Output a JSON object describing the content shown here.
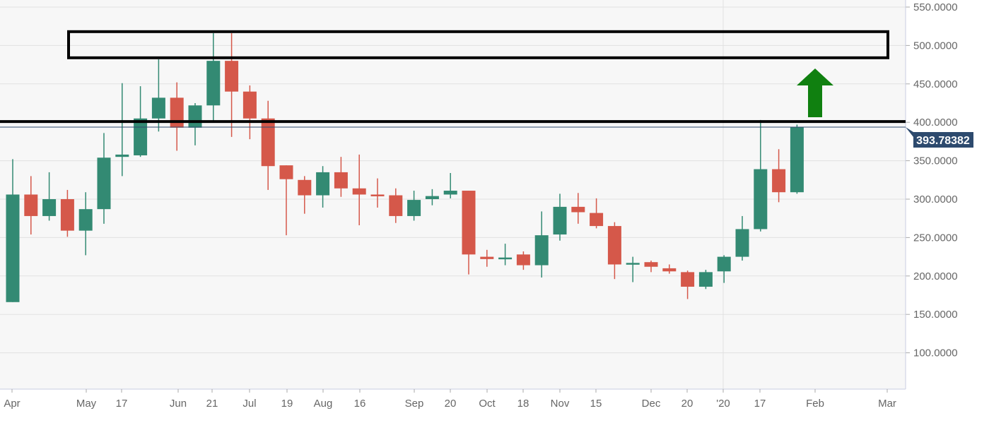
{
  "chart_data": {
    "type": "candlestick",
    "ylim": [
      50,
      555
    ],
    "y_ticks": [
      "550.0000",
      "500.0000",
      "450.0000",
      "400.0000",
      "350.0000",
      "300.0000",
      "250.0000",
      "200.0000",
      "150.0000",
      "100.0000"
    ],
    "y_tick_values": [
      550,
      500,
      450,
      400,
      350,
      300,
      250,
      200,
      150,
      100
    ],
    "x_ticks": [
      "Apr",
      "May",
      "17",
      "Jun",
      "21",
      "Jul",
      "19",
      "Aug",
      "16",
      "Sep",
      "20",
      "Oct",
      "18",
      "Nov",
      "15",
      "Dec",
      "20",
      "'20",
      "17",
      "Feb",
      "Mar"
    ],
    "grid": true,
    "last_price": 393.78382,
    "last_price_label": "393.78382",
    "colors": {
      "up": "#338a73",
      "down": "#d5584a",
      "last_price": "#2d4a6e",
      "arrow": "#108010",
      "annotation": "#000000"
    },
    "annotations": {
      "resistance_zone": [
        484,
        518
      ],
      "resistance_line": 401,
      "arrow": "up"
    },
    "candles": [
      {
        "o": 166,
        "h": 352,
        "l": 166,
        "c": 306
      },
      {
        "o": 306,
        "h": 330,
        "l": 254,
        "c": 278
      },
      {
        "o": 278,
        "h": 335,
        "l": 272,
        "c": 300
      },
      {
        "o": 300,
        "h": 312,
        "l": 251,
        "c": 259
      },
      {
        "o": 259,
        "h": 309,
        "l": 227,
        "c": 287
      },
      {
        "o": 287,
        "h": 386,
        "l": 268,
        "c": 354
      },
      {
        "o": 355,
        "h": 451,
        "l": 330,
        "c": 358
      },
      {
        "o": 357,
        "h": 447,
        "l": 355,
        "c": 405
      },
      {
        "o": 405,
        "h": 482,
        "l": 388,
        "c": 432
      },
      {
        "o": 432,
        "h": 452,
        "l": 363,
        "c": 393
      },
      {
        "o": 393,
        "h": 425,
        "l": 370,
        "c": 422
      },
      {
        "o": 422,
        "h": 516,
        "l": 400,
        "c": 480
      },
      {
        "o": 480,
        "h": 516,
        "l": 381,
        "c": 440
      },
      {
        "o": 440,
        "h": 448,
        "l": 378,
        "c": 405
      },
      {
        "o": 405,
        "h": 428,
        "l": 312,
        "c": 343
      },
      {
        "o": 344,
        "h": 344,
        "l": 253,
        "c": 326
      },
      {
        "o": 325,
        "h": 330,
        "l": 281,
        "c": 305
      },
      {
        "o": 305,
        "h": 343,
        "l": 289,
        "c": 335
      },
      {
        "o": 335,
        "h": 355,
        "l": 303,
        "c": 314
      },
      {
        "o": 314,
        "h": 358,
        "l": 266,
        "c": 306
      },
      {
        "o": 306,
        "h": 327,
        "l": 289,
        "c": 305
      },
      {
        "o": 305,
        "h": 314,
        "l": 269,
        "c": 278
      },
      {
        "o": 278,
        "h": 311,
        "l": 272,
        "c": 299
      },
      {
        "o": 300,
        "h": 313,
        "l": 292,
        "c": 304
      },
      {
        "o": 306,
        "h": 334,
        "l": 301,
        "c": 311
      },
      {
        "o": 311,
        "h": 311,
        "l": 202,
        "c": 228
      },
      {
        "o": 225,
        "h": 234,
        "l": 212,
        "c": 222
      },
      {
        "o": 223,
        "h": 242,
        "l": 214,
        "c": 224
      },
      {
        "o": 228,
        "h": 232,
        "l": 208,
        "c": 214
      },
      {
        "o": 214,
        "h": 284,
        "l": 198,
        "c": 253
      },
      {
        "o": 254,
        "h": 307,
        "l": 246,
        "c": 290
      },
      {
        "o": 290,
        "h": 308,
        "l": 268,
        "c": 283
      },
      {
        "o": 282,
        "h": 301,
        "l": 262,
        "c": 265
      },
      {
        "o": 265,
        "h": 270,
        "l": 196,
        "c": 215
      },
      {
        "o": 216,
        "h": 225,
        "l": 192,
        "c": 217
      },
      {
        "o": 218,
        "h": 220,
        "l": 205,
        "c": 212
      },
      {
        "o": 210,
        "h": 215,
        "l": 203,
        "c": 206
      },
      {
        "o": 205,
        "h": 207,
        "l": 170,
        "c": 186
      },
      {
        "o": 186,
        "h": 208,
        "l": 183,
        "c": 205
      },
      {
        "o": 206,
        "h": 227,
        "l": 191,
        "c": 225
      },
      {
        "o": 225,
        "h": 278,
        "l": 220,
        "c": 261
      },
      {
        "o": 261,
        "h": 403,
        "l": 258,
        "c": 339
      },
      {
        "o": 339,
        "h": 365,
        "l": 296,
        "c": 309
      },
      {
        "o": 309,
        "h": 397,
        "l": 307,
        "c": 393.78382
      }
    ]
  }
}
